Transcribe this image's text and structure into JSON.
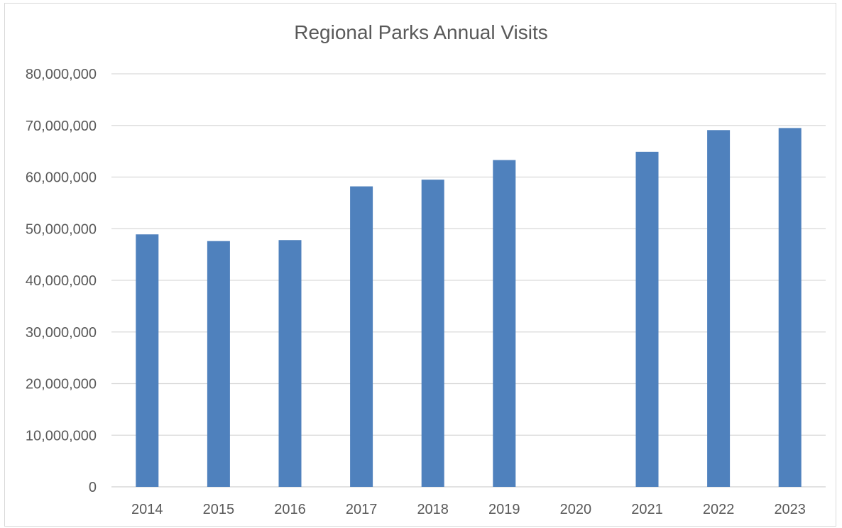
{
  "chart_data": {
    "type": "bar",
    "title": "Regional Parks Annual Visits",
    "xlabel": "",
    "ylabel": "",
    "categories": [
      "2014",
      "2015",
      "2016",
      "2017",
      "2018",
      "2019",
      "2020",
      "2021",
      "2022",
      "2023"
    ],
    "values": [
      48900000,
      47600000,
      47800000,
      58200000,
      59500000,
      63300000,
      null,
      64900000,
      69100000,
      69500000
    ],
    "ylim": [
      0,
      80000000
    ],
    "yticks": [
      "0",
      "10,000,000",
      "20,000,000",
      "30,000,000",
      "40,000,000",
      "50,000,000",
      "60,000,000",
      "70,000,000",
      "80,000,000"
    ],
    "grid": true,
    "bar_color": "#4f81bd",
    "grid_color": "#d9d9d9"
  }
}
